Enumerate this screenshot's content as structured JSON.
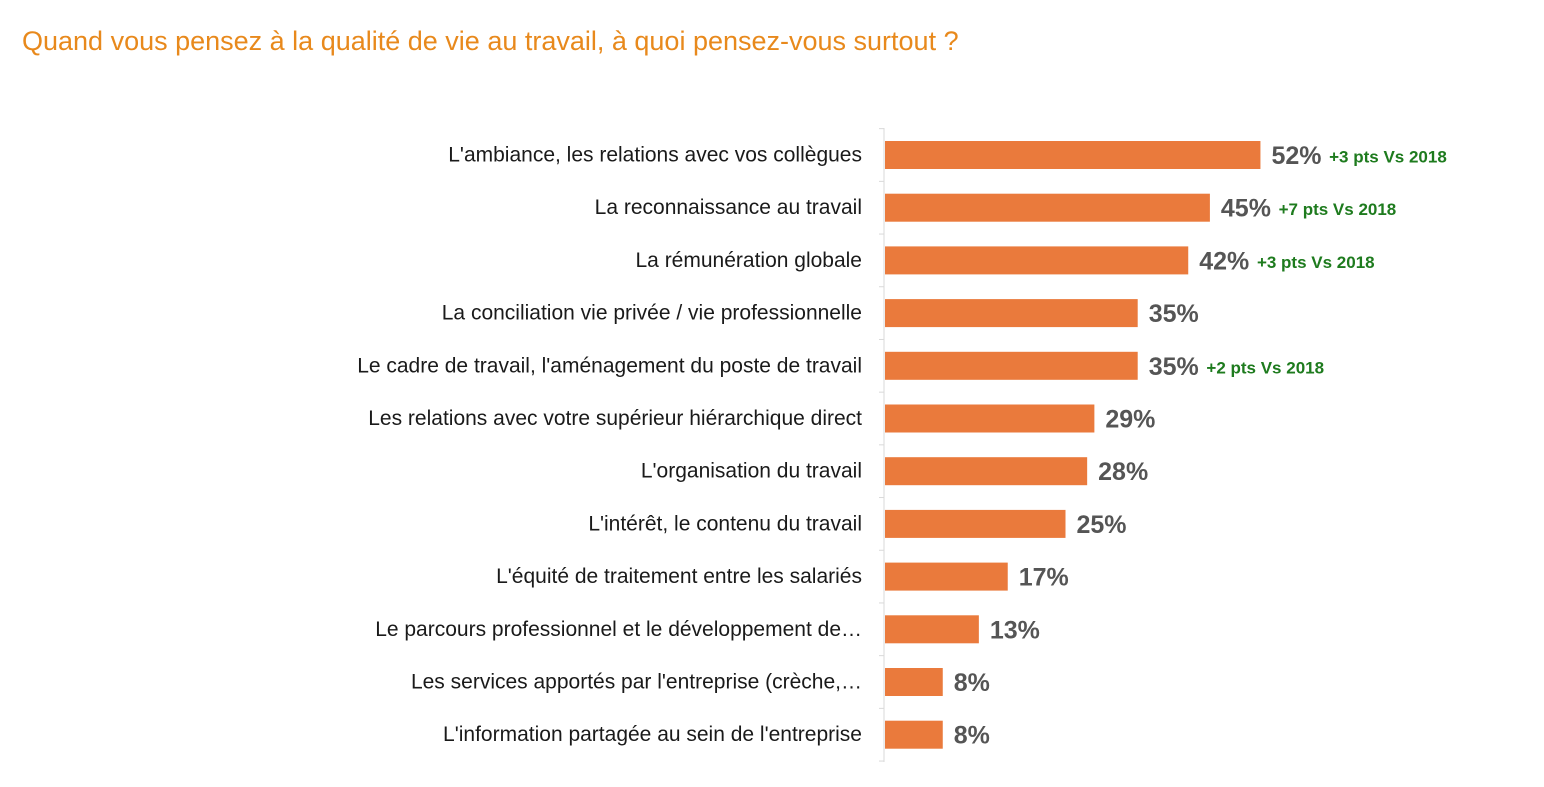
{
  "title": "Quand vous pensez à la qualité de vie au travail, à quoi pensez-vous surtout ?",
  "colors": {
    "title": "#E8891C",
    "bar": "#EA7A3C",
    "value_text": "#555555",
    "delta_text": "#1E7B1E",
    "axis": "#D9D9D9"
  },
  "chart_data": {
    "type": "bar",
    "orientation": "horizontal",
    "title": "Quand vous pensez à la qualité de vie au travail, à quoi pensez-vous surtout ?",
    "xlim": [
      0,
      100
    ],
    "grid": false,
    "legend": "none",
    "value_suffix": "%",
    "categories": [
      "L'ambiance, les relations avec vos collègues",
      "La reconnaissance au travail",
      "La rémunération globale",
      "La conciliation vie privée / vie professionnelle",
      "Le cadre de travail, l'aménagement du poste de travail",
      "Les relations avec votre supérieur hiérarchique direct",
      "L'organisation du travail",
      "L'intérêt, le contenu du travail",
      "L'équité de traitement entre les salariés",
      "Le parcours professionnel et le développement de…",
      "Les services apportés par l'entreprise (crèche,…",
      "L'information partagée au sein de l'entreprise"
    ],
    "values": [
      52,
      45,
      42,
      35,
      35,
      29,
      28,
      25,
      17,
      13,
      8,
      8
    ],
    "value_labels": [
      "52%",
      "45%",
      "42%",
      "35%",
      "35%",
      "29%",
      "28%",
      "25%",
      "17%",
      "13%",
      "8%",
      "8%"
    ],
    "annotations": [
      "+3 pts Vs 2018",
      "+7 pts Vs 2018",
      "+3 pts Vs 2018",
      "",
      "+2 pts Vs 2018",
      "",
      "",
      "",
      "",
      "",
      "",
      ""
    ]
  }
}
